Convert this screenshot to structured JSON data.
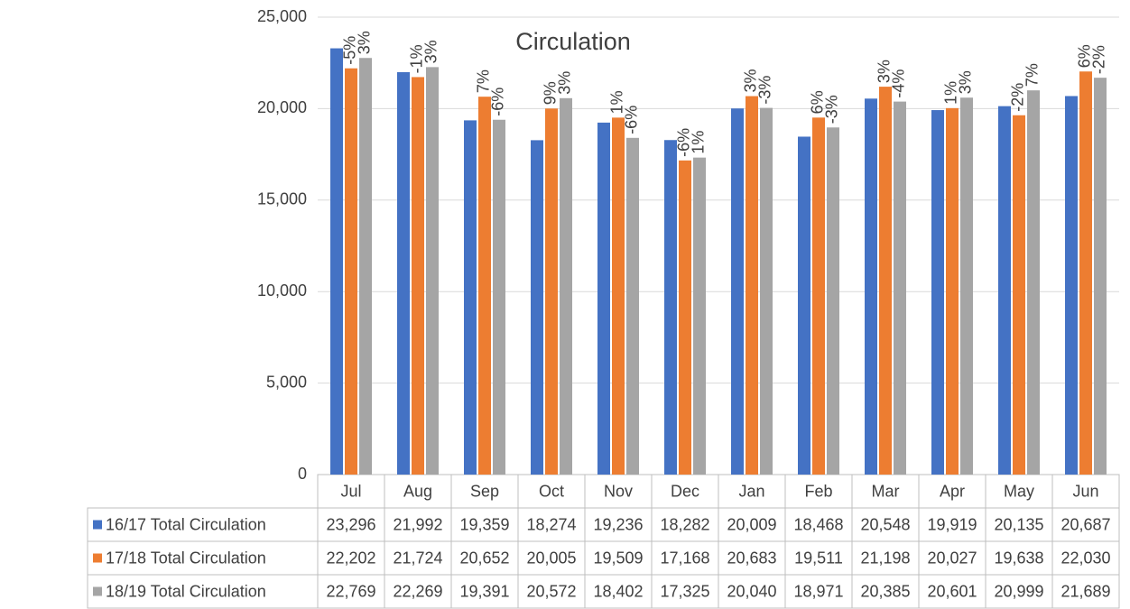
{
  "chart_data": {
    "type": "bar",
    "title": "Circulation",
    "categories": [
      "Jul",
      "Aug",
      "Sep",
      "Oct",
      "Nov",
      "Dec",
      "Jan",
      "Feb",
      "Mar",
      "Apr",
      "May",
      "Jun"
    ],
    "series": [
      {
        "name": "16/17 Total Circulation",
        "color": "#4472c4",
        "values": [
          23296,
          21992,
          19359,
          18274,
          19236,
          18282,
          20009,
          18468,
          20548,
          19919,
          20135,
          20687
        ],
        "value_labels": [
          "23,296",
          "21,992",
          "19,359",
          "18,274",
          "19,236",
          "18,282",
          "20,009",
          "18,468",
          "20,548",
          "19,919",
          "20,135",
          "20,687"
        ]
      },
      {
        "name": "17/18 Total Circulation",
        "color": "#ed7d31",
        "values": [
          22202,
          21724,
          20652,
          20005,
          19509,
          17168,
          20683,
          19511,
          21198,
          20027,
          19638,
          22030
        ],
        "value_labels": [
          "22,202",
          "21,724",
          "20,652",
          "20,005",
          "19,509",
          "17,168",
          "20,683",
          "19,511",
          "21,198",
          "20,027",
          "19,638",
          "22,030"
        ],
        "change_labels": [
          "-5%",
          "-1%",
          "7%",
          "9%",
          "1%",
          "-6%",
          "3%",
          "6%",
          "3%",
          "1%",
          "-2%",
          "6%"
        ]
      },
      {
        "name": "18/19 Total Circulation",
        "color": "#a5a5a5",
        "values": [
          22769,
          22269,
          19391,
          20572,
          18402,
          17325,
          20040,
          18971,
          20385,
          20601,
          20999,
          21689
        ],
        "value_labels": [
          "22,769",
          "22,269",
          "19,391",
          "20,572",
          "18,402",
          "17,325",
          "20,040",
          "18,971",
          "20,385",
          "20,601",
          "20,999",
          "21,689"
        ],
        "change_labels": [
          "3%",
          "3%",
          "-6%",
          "3%",
          "-6%",
          "1%",
          "-3%",
          "-3%",
          "-4%",
          "3%",
          "7%",
          "-2%"
        ]
      }
    ],
    "ylim": [
      0,
      25000
    ],
    "yticks": [
      {
        "value": 0,
        "label": "0"
      },
      {
        "value": 5000,
        "label": "5,000"
      },
      {
        "value": 10000,
        "label": "10,000"
      },
      {
        "value": 15000,
        "label": "15,000"
      },
      {
        "value": 20000,
        "label": "20,000"
      },
      {
        "value": 25000,
        "label": "25,000"
      }
    ],
    "grid": true
  }
}
